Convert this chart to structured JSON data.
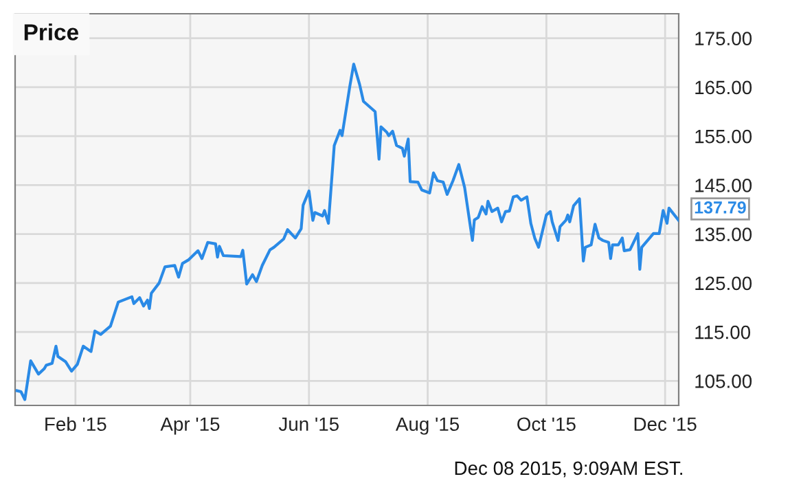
{
  "chart_data": {
    "type": "line",
    "title": "Price",
    "x": [
      "2015-01-02",
      "2015-01-04",
      "2015-01-06",
      "2015-01-09",
      "2015-01-13",
      "2015-01-16",
      "2015-01-17",
      "2015-01-20",
      "2015-01-22",
      "2015-01-23",
      "2015-01-27",
      "2015-01-30",
      "2015-02-02",
      "2015-02-05",
      "2015-02-09",
      "2015-02-11",
      "2015-02-14",
      "2015-02-19",
      "2015-02-23",
      "2015-03-02",
      "2015-03-03",
      "2015-03-06",
      "2015-03-08",
      "2015-03-10",
      "2015-03-11",
      "2015-03-12",
      "2015-03-16",
      "2015-03-19",
      "2015-03-24",
      "2015-03-26",
      "2015-03-28",
      "2015-03-31",
      "2015-04-05",
      "2015-04-07",
      "2015-04-10",
      "2015-04-14",
      "2015-04-15",
      "2015-04-16",
      "2015-04-18",
      "2015-04-27",
      "2015-04-28",
      "2015-04-30",
      "2015-05-03",
      "2015-05-05",
      "2015-05-08",
      "2015-05-12",
      "2015-05-14",
      "2015-05-19",
      "2015-05-21",
      "2015-05-25",
      "2015-05-28",
      "2015-05-29",
      "2015-06-01",
      "2015-06-03",
      "2015-06-04",
      "2015-06-08",
      "2015-06-09",
      "2015-06-11",
      "2015-06-14",
      "2015-06-17",
      "2015-06-18",
      "2015-06-22",
      "2015-06-24",
      "2015-06-27",
      "2015-06-29",
      "2015-07-05",
      "2015-07-07",
      "2015-07-08",
      "2015-07-11",
      "2015-07-12",
      "2015-07-14",
      "2015-07-16",
      "2015-07-19",
      "2015-07-20",
      "2015-07-22",
      "2015-07-23",
      "2015-07-27",
      "2015-07-29",
      "2015-08-02",
      "2015-08-04",
      "2015-08-06",
      "2015-08-09",
      "2015-08-11",
      "2015-08-14",
      "2015-08-17",
      "2015-08-20",
      "2015-08-24",
      "2015-08-25",
      "2015-08-27",
      "2015-08-29",
      "2015-08-31",
      "2015-09-01",
      "2015-09-03",
      "2015-09-06",
      "2015-09-08",
      "2015-09-10",
      "2015-09-12",
      "2015-09-14",
      "2015-09-16",
      "2015-09-18",
      "2015-09-21",
      "2015-09-23",
      "2015-09-25",
      "2015-09-27",
      "2015-09-29",
      "2015-10-01",
      "2015-10-03",
      "2015-10-04",
      "2015-10-07",
      "2015-10-08",
      "2015-10-11",
      "2015-10-12",
      "2015-10-13",
      "2015-10-15",
      "2015-10-18",
      "2015-10-20",
      "2015-10-21",
      "2015-10-24",
      "2015-10-26",
      "2015-10-28",
      "2015-10-30",
      "2015-11-02",
      "2015-11-03",
      "2015-11-04",
      "2015-11-07",
      "2015-11-09",
      "2015-11-10",
      "2015-11-13",
      "2015-11-17",
      "2015-11-18",
      "2015-11-19",
      "2015-11-22",
      "2015-11-25",
      "2015-11-28",
      "2015-11-30",
      "2015-12-02",
      "2015-12-03",
      "2015-12-08"
    ],
    "series": [
      {
        "color": "#2a8ae6",
        "values": [
          103.0,
          102.8,
          101.2,
          109.1,
          106.4,
          107.5,
          108.2,
          108.6,
          112.1,
          110.0,
          108.9,
          107.0,
          108.4,
          112.1,
          111.0,
          115.2,
          114.5,
          116.2,
          121.1,
          122.2,
          120.8,
          122.0,
          120.3,
          121.5,
          119.8,
          122.9,
          125.0,
          128.3,
          128.6,
          126.2,
          129.0,
          129.7,
          131.6,
          130.0,
          133.3,
          133.0,
          130.3,
          132.5,
          130.6,
          130.4,
          131.7,
          124.8,
          126.7,
          125.3,
          128.6,
          131.8,
          132.3,
          134.0,
          135.9,
          134.2,
          136.1,
          140.9,
          143.8,
          137.8,
          139.4,
          138.7,
          139.8,
          137.2,
          153.1,
          156.2,
          155.1,
          165.2,
          169.7,
          165.6,
          162.1,
          160.0,
          150.3,
          156.9,
          155.8,
          155.1,
          156.0,
          153.1,
          152.5,
          150.9,
          154.4,
          145.7,
          145.6,
          144.0,
          143.4,
          147.5,
          145.9,
          145.6,
          143.1,
          145.9,
          149.2,
          144.5,
          133.7,
          137.9,
          138.4,
          140.6,
          139.1,
          141.7,
          139.6,
          140.3,
          137.5,
          139.6,
          139.7,
          142.6,
          142.8,
          141.9,
          142.6,
          137.2,
          134.2,
          132.3,
          135.6,
          138.9,
          139.6,
          137.5,
          133.7,
          136.5,
          137.8,
          138.9,
          137.5,
          140.8,
          142.2,
          129.5,
          132.3,
          132.8,
          137.0,
          134.2,
          133.7,
          133.3,
          130.0,
          132.8,
          132.8,
          134.2,
          131.6,
          131.8,
          135.1,
          127.8,
          132.3,
          133.7,
          135.1,
          135.1,
          139.8,
          137.2,
          140.3,
          137.79
        ]
      }
    ],
    "xlim": [
      "2015-01-01",
      "2015-12-08"
    ],
    "xticks": [
      {
        "value": "2015-02-01",
        "label": "Feb '15"
      },
      {
        "value": "2015-04-01",
        "label": "Apr '15"
      },
      {
        "value": "2015-06-01",
        "label": "Jun '15"
      },
      {
        "value": "2015-08-01",
        "label": "Aug '15"
      },
      {
        "value": "2015-10-01",
        "label": "Oct '15"
      },
      {
        "value": "2015-12-01",
        "label": "Dec '15"
      }
    ],
    "ylim": [
      100,
      180
    ],
    "yticks": [
      {
        "value": 105,
        "label": "105.00"
      },
      {
        "value": 115,
        "label": "115.00"
      },
      {
        "value": 125,
        "label": "125.00"
      },
      {
        "value": 135,
        "label": "135.00"
      },
      {
        "value": 145,
        "label": "145.00"
      },
      {
        "value": 155,
        "label": "155.00"
      },
      {
        "value": 165,
        "label": "165.00"
      },
      {
        "value": 175,
        "label": "175.00"
      }
    ],
    "grid": true,
    "legend": false,
    "marker": "none",
    "line_style": "solid",
    "annotations": [
      {
        "text": "137.79",
        "x": "2015-12-08",
        "y": 137.79
      },
      "Dec 08 2015, 9:09AM EST."
    ]
  }
}
